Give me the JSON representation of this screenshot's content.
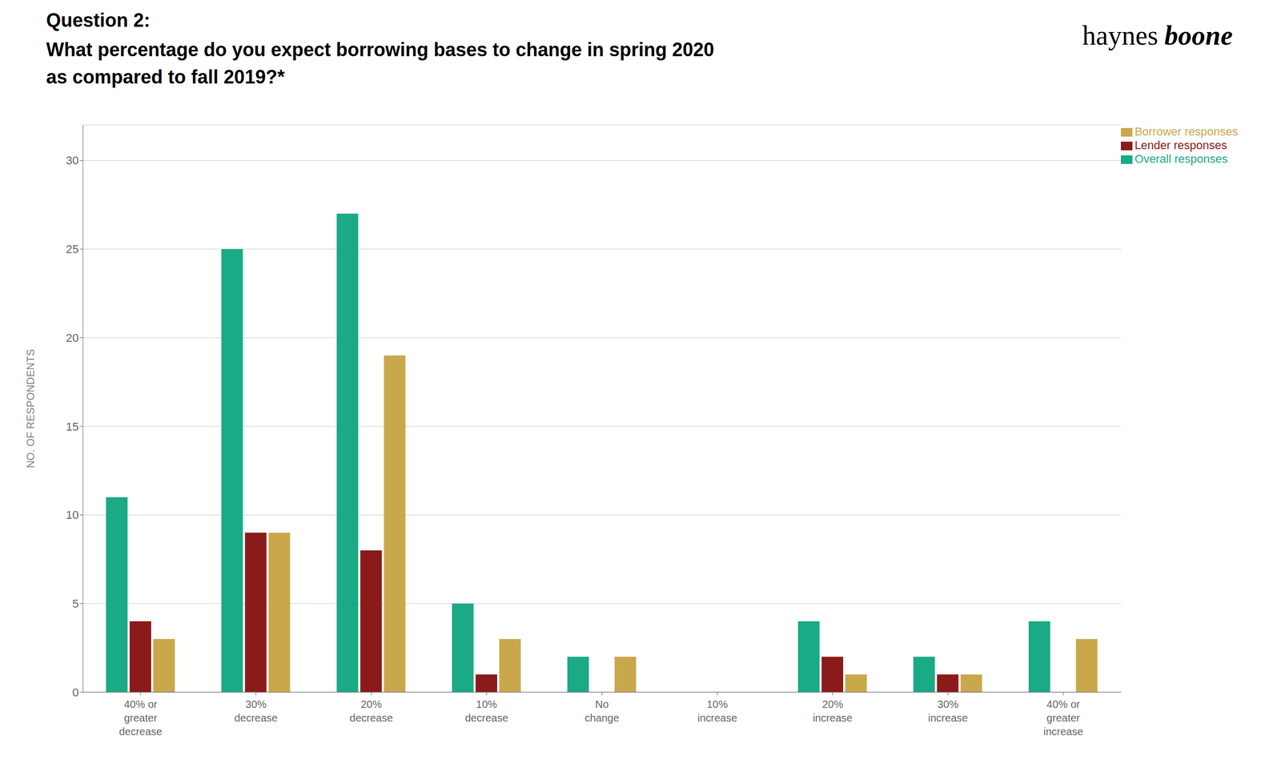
{
  "chart_data": {
    "type": "bar",
    "title": "Question 2:",
    "subtitle": [
      "What percentage do you expect borrowing bases to change in spring 2020",
      "as compared to fall 2019?*"
    ],
    "annotations": [
      "haynes",
      "boone"
    ],
    "categories": [
      "40% or\ngreater\ndecrease",
      "30%\ndecrease",
      "20%\ndecrease",
      "10%\ndecrease",
      "No\nchange",
      "10%\nincrease",
      "20%\nincrease",
      "30%\nincrease",
      "40% or\ngreater\nincrease"
    ],
    "series": [
      {
        "name": "Overall responses",
        "color": "#1aaa85",
        "values": [
          11,
          25,
          27,
          5,
          2,
          0,
          4,
          2,
          4
        ]
      },
      {
        "name": "Lender responses",
        "color": "#8B1A1A",
        "values": [
          4,
          9,
          8,
          1,
          0,
          0,
          2,
          1,
          0
        ]
      },
      {
        "name": "Borrower responses",
        "color": "#C9A84C",
        "values": [
          3,
          9,
          19,
          3,
          2,
          0,
          1,
          1,
          3
        ]
      }
    ],
    "y_label": "NO. OF RESPONDENTS",
    "ylim": [
      0,
      32
    ],
    "yticks": [
      0,
      5,
      10,
      15,
      20,
      25,
      30
    ],
    "grid": true,
    "legend": "upper right"
  }
}
